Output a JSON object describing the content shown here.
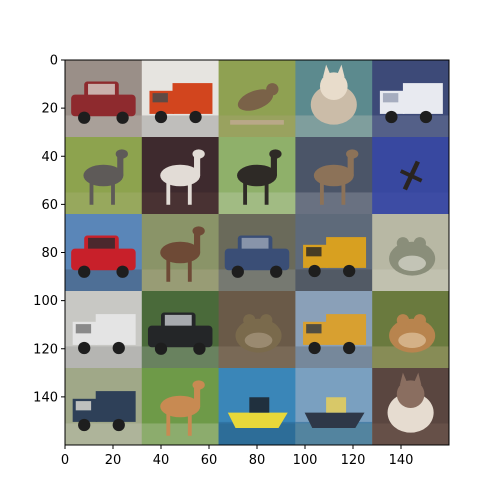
{
  "chart_data": {
    "type": "image",
    "title": "",
    "xlabel": "",
    "ylabel": "",
    "xlim": [
      0,
      160
    ],
    "ylim": [
      160,
      0
    ],
    "y_inverted": true,
    "grid": false,
    "legend": "none",
    "x_ticks": [
      0,
      20,
      40,
      60,
      80,
      100,
      120,
      140
    ],
    "y_ticks": [
      0,
      20,
      40,
      60,
      80,
      100,
      120,
      140
    ],
    "x_tick_labels": [
      "0",
      "20",
      "40",
      "60",
      "80",
      "100",
      "120",
      "140"
    ],
    "y_tick_labels": [
      "0",
      "20",
      "40",
      "60",
      "80",
      "100",
      "120",
      "140"
    ],
    "tile_size": 32,
    "grid_rows": 5,
    "grid_cols": 5,
    "tiles": [
      {
        "row": 0,
        "col": 0,
        "subject": "red-car",
        "bg": "#9a8f88",
        "main": "#8e2a2e",
        "accent": "#d9d2cc"
      },
      {
        "row": 0,
        "col": 1,
        "subject": "orange-truck",
        "bg": "#e6e4e0",
        "main": "#d2451e",
        "accent": "#4b4b4b"
      },
      {
        "row": 0,
        "col": 2,
        "subject": "bird",
        "bg": "#8fa152",
        "main": "#7a6248",
        "accent": "#b9a888"
      },
      {
        "row": 0,
        "col": 3,
        "subject": "cat",
        "bg": "#5c8a8e",
        "main": "#cbbca8",
        "accent": "#e8dccb"
      },
      {
        "row": 0,
        "col": 4,
        "subject": "white-truck",
        "bg": "#3d4a78",
        "main": "#e8eaf0",
        "accent": "#9aa2b6"
      },
      {
        "row": 1,
        "col": 0,
        "subject": "ostrich",
        "bg": "#8da34e",
        "main": "#5e5a58",
        "accent": "#b8b98a"
      },
      {
        "row": 1,
        "col": 1,
        "subject": "white-horse",
        "bg": "#3e2a2e",
        "main": "#e2dcd6",
        "accent": "#6b4a42"
      },
      {
        "row": 1,
        "col": 2,
        "subject": "black-horse",
        "bg": "#8fb06a",
        "main": "#2e2a26",
        "accent": "#d8ddd0"
      },
      {
        "row": 1,
        "col": 3,
        "subject": "deer",
        "bg": "#4b5568",
        "main": "#8c7258",
        "accent": "#c2c6cc"
      },
      {
        "row": 1,
        "col": 4,
        "subject": "airplane",
        "bg": "#3848a0",
        "main": "#2a2420",
        "accent": "#4a58b0"
      },
      {
        "row": 2,
        "col": 0,
        "subject": "red-car",
        "bg": "#5a86b8",
        "main": "#c8202a",
        "accent": "#2a2a2e"
      },
      {
        "row": 2,
        "col": 1,
        "subject": "deer",
        "bg": "#8a9468",
        "main": "#6e4a36",
        "accent": "#c4b49a"
      },
      {
        "row": 2,
        "col": 2,
        "subject": "blue-car",
        "bg": "#6a6a5a",
        "main": "#3a4e76",
        "accent": "#9ca6b8"
      },
      {
        "row": 2,
        "col": 3,
        "subject": "yellow-truck",
        "bg": "#5e6a7a",
        "main": "#d8a020",
        "accent": "#2e2a26"
      },
      {
        "row": 2,
        "col": 4,
        "subject": "frog",
        "bg": "#b8b8a4",
        "main": "#8a8e7a",
        "accent": "#dcdcd0"
      },
      {
        "row": 3,
        "col": 0,
        "subject": "white-truck",
        "bg": "#c8c8c4",
        "main": "#e4e4e4",
        "accent": "#7a7a7a"
      },
      {
        "row": 3,
        "col": 1,
        "subject": "black-car",
        "bg": "#4a6a3a",
        "main": "#242628",
        "accent": "#c8ccd0"
      },
      {
        "row": 3,
        "col": 2,
        "subject": "frog",
        "bg": "#6a5a48",
        "main": "#7a6a4c",
        "accent": "#a89880"
      },
      {
        "row": 3,
        "col": 3,
        "subject": "yellow-truck",
        "bg": "#8aa0b8",
        "main": "#d8a030",
        "accent": "#3a3e44"
      },
      {
        "row": 3,
        "col": 4,
        "subject": "frog",
        "bg": "#6a7a3e",
        "main": "#b8844e",
        "accent": "#e0c4a0"
      },
      {
        "row": 4,
        "col": 0,
        "subject": "blue-truck",
        "bg": "#a0a888",
        "main": "#2e4058",
        "accent": "#d8d8d0"
      },
      {
        "row": 4,
        "col": 1,
        "subject": "dog",
        "bg": "#6e9a48",
        "main": "#c88a52",
        "accent": "#e8e4dc"
      },
      {
        "row": 4,
        "col": 2,
        "subject": "yellow-boat",
        "bg": "#3a86b8",
        "main": "#e8d83a",
        "accent": "#20303e"
      },
      {
        "row": 4,
        "col": 3,
        "subject": "ship",
        "bg": "#7aa0c0",
        "main": "#2e3848",
        "accent": "#d8c868"
      },
      {
        "row": 4,
        "col": 4,
        "subject": "cat",
        "bg": "#5a4640",
        "main": "#e6dcd0",
        "accent": "#8a6e60"
      }
    ]
  }
}
